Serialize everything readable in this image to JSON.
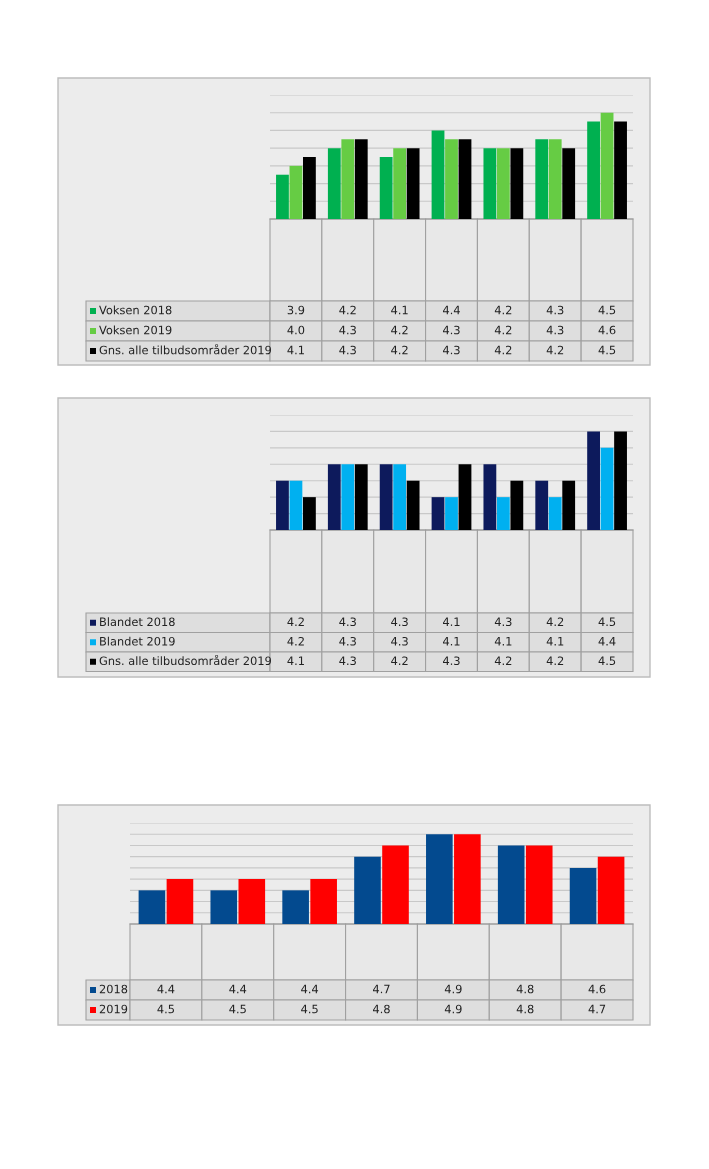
{
  "chart_data": [
    {
      "type": "bar",
      "categories": [
        null,
        null,
        null,
        null,
        null,
        null,
        null
      ],
      "ylim": [
        3.4,
        4.8
      ],
      "yticks": [
        {
          "value": 3.6,
          "label": null
        },
        {
          "value": 3.8,
          "label": null
        },
        {
          "value": 4.0,
          "label": null
        },
        {
          "value": 4.2,
          "label": null
        },
        {
          "value": 4.4,
          "label": null
        },
        {
          "value": 4.6,
          "label": null
        },
        {
          "value": 4.8,
          "label": null
        }
      ],
      "grid": "y",
      "legend": "bottom",
      "series": [
        {
          "name": "Voksen 2018",
          "color": "#00b050",
          "values": [
            3.9,
            4.2,
            4.1,
            4.4,
            4.2,
            4.3,
            4.5
          ],
          "value_labels": [
            "3.9",
            "4.2",
            "4.1",
            "4.4",
            "4.2",
            "4.3",
            "4.5"
          ]
        },
        {
          "name": "Voksen 2019",
          "color": "#66cc44",
          "values": [
            4.0,
            4.3,
            4.2,
            4.3,
            4.2,
            4.3,
            4.6
          ],
          "value_labels": [
            "4.0",
            "4.3",
            "4.2",
            "4.3",
            "4.2",
            "4.3",
            "4.6"
          ]
        },
        {
          "name": "Gns. alle tilbudsområder 2019",
          "color": "#000000",
          "values": [
            4.1,
            4.3,
            4.2,
            4.3,
            4.2,
            4.2,
            4.5
          ],
          "value_labels": [
            "4.1",
            "4.3",
            "4.2",
            "4.3",
            "4.2",
            "4.2",
            "4.5"
          ]
        }
      ]
    },
    {
      "type": "bar",
      "categories": [
        null,
        null,
        null,
        null,
        null,
        null,
        null
      ],
      "ylim": [
        3.9,
        4.6
      ],
      "yticks": [
        {
          "value": 4.0,
          "label": null
        },
        {
          "value": 4.1,
          "label": null
        },
        {
          "value": 4.2,
          "label": null
        },
        {
          "value": 4.3,
          "label": null
        },
        {
          "value": 4.4,
          "label": null
        },
        {
          "value": 4.5,
          "label": null
        },
        {
          "value": 4.6,
          "label": null
        }
      ],
      "grid": "y",
      "legend": "bottom",
      "series": [
        {
          "name": "Blandet 2018",
          "color": "#0d1a5c",
          "values": [
            4.2,
            4.3,
            4.3,
            4.1,
            4.3,
            4.2,
            4.5
          ],
          "value_labels": [
            "4.2",
            "4.3",
            "4.3",
            "4.1",
            "4.3",
            "4.2",
            "4.5"
          ]
        },
        {
          "name": "Blandet 2019",
          "color": "#00b0f0",
          "values": [
            4.2,
            4.3,
            4.3,
            4.1,
            4.1,
            4.1,
            4.4
          ],
          "value_labels": [
            "4.2",
            "4.3",
            "4.3",
            "4.1",
            "4.1",
            "4.1",
            "4.4"
          ]
        },
        {
          "name": "Gns. alle tilbudsområder 2019",
          "color": "#000000",
          "values": [
            4.1,
            4.3,
            4.2,
            4.3,
            4.2,
            4.2,
            4.5
          ],
          "value_labels": [
            "4.1",
            "4.3",
            "4.2",
            "4.3",
            "4.2",
            "4.2",
            "4.5"
          ]
        }
      ]
    },
    {
      "type": "bar",
      "categories": [
        null,
        null,
        null,
        null,
        null,
        null,
        null
      ],
      "ylim": [
        4.1,
        5.0
      ],
      "yticks": [
        {
          "value": 4.2,
          "label": null
        },
        {
          "value": 4.3,
          "label": null
        },
        {
          "value": 4.4,
          "label": null
        },
        {
          "value": 4.5,
          "label": null
        },
        {
          "value": 4.6,
          "label": null
        },
        {
          "value": 4.7,
          "label": null
        },
        {
          "value": 4.8,
          "label": null
        },
        {
          "value": 4.9,
          "label": null
        },
        {
          "value": 5.0,
          "label": null
        }
      ],
      "grid": "y",
      "legend": "bottom",
      "series": [
        {
          "name": "2018",
          "color": "#034a8f",
          "values": [
            4.4,
            4.4,
            4.4,
            4.7,
            4.9,
            4.8,
            4.6
          ],
          "value_labels": [
            "4.4",
            "4.4",
            "4.4",
            "4.7",
            "4.9",
            "4.8",
            "4.6"
          ]
        },
        {
          "name": "2019",
          "color": "#ff0000",
          "values": [
            4.5,
            4.5,
            4.5,
            4.8,
            4.9,
            4.8,
            4.7
          ],
          "value_labels": [
            "4.5",
            "4.5",
            "4.5",
            "4.8",
            "4.9",
            "4.8",
            "4.7"
          ]
        }
      ]
    }
  ]
}
